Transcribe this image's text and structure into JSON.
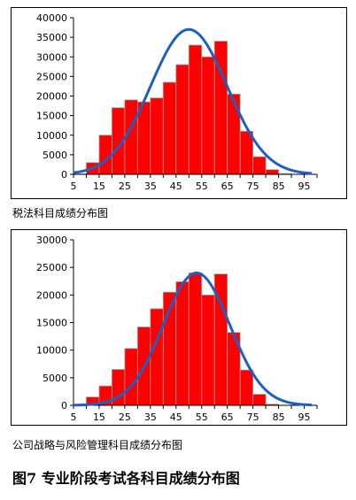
{
  "figure_title": "图7  专业阶段考试各科目成绩分布图",
  "chart_data": [
    {
      "type": "bar",
      "title": "税法科目成绩分布图",
      "x_tick_labels": [
        "5",
        "15",
        "25",
        "35",
        "45",
        "55",
        "65",
        "75",
        "85",
        "95"
      ],
      "bin_centers": [
        7.5,
        12.5,
        17.5,
        22.5,
        27.5,
        32.5,
        37.5,
        42.5,
        47.5,
        52.5,
        57.5,
        62.5,
        67.5,
        72.5,
        77.5,
        82.5,
        87.5
      ],
      "values": [
        100,
        3000,
        10000,
        17000,
        19000,
        18500,
        19500,
        23500,
        28000,
        33000,
        30000,
        34000,
        20500,
        11000,
        4500,
        1200,
        200
      ],
      "ylim": [
        0,
        40000
      ],
      "y_ticks": [
        0,
        5000,
        10000,
        15000,
        20000,
        25000,
        30000,
        35000,
        40000
      ],
      "xlim": [
        5,
        100
      ],
      "bar_color": "#ff0000",
      "curve_color": "#1f5fbf",
      "curve": {
        "type": "normal",
        "mean": 50,
        "sd": 15,
        "peak": 37000
      }
    },
    {
      "type": "bar",
      "title": "公司战略与风险管理科目成绩分布图",
      "x_tick_labels": [
        "5",
        "15",
        "25",
        "35",
        "45",
        "55",
        "65",
        "75",
        "85",
        "95"
      ],
      "bin_centers": [
        7.5,
        12.5,
        17.5,
        22.5,
        27.5,
        32.5,
        37.5,
        42.5,
        47.5,
        52.5,
        57.5,
        62.5,
        67.5,
        72.5,
        77.5,
        82.5,
        87.5
      ],
      "values": [
        100,
        1500,
        3500,
        6500,
        10300,
        14200,
        17500,
        20500,
        22400,
        24000,
        20000,
        23800,
        13200,
        6400,
        2000,
        200,
        0
      ],
      "ylim": [
        0,
        30000
      ],
      "y_ticks": [
        0,
        5000,
        10000,
        15000,
        20000,
        25000,
        30000
      ],
      "xlim": [
        5,
        100
      ],
      "bar_color": "#ff0000",
      "curve_color": "#1f5fbf",
      "curve": {
        "type": "normal",
        "mean": 53,
        "sd": 13,
        "peak": 24000
      }
    }
  ]
}
